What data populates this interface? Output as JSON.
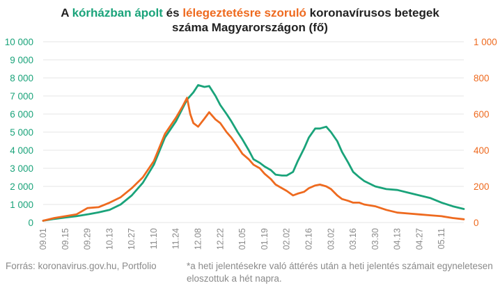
{
  "chart_data": {
    "type": "line",
    "title": {
      "part1": "A ",
      "hl1": "kórházban ápolt",
      "part2": " és ",
      "hl2": "lélegeztetésre szoruló",
      "part3": " koronavírusos betegek",
      "line2": "száma Magyarországon  (fő)"
    },
    "x_ticks": [
      "09.01",
      "09.15",
      "09.29",
      "10.13",
      "10.27",
      "11.10",
      "11.24",
      "12.08",
      "12.22",
      "01.05",
      "01.19",
      "02.02",
      "02.16",
      "03.02",
      "03.16",
      "03.30",
      "04.13",
      "04.27",
      "05.11"
    ],
    "y_left": {
      "ticks": [
        "0",
        "1 000",
        "2 000",
        "3 000",
        "4 000",
        "5 000",
        "6 000",
        "7 000",
        "8 000",
        "9 000",
        "10 000"
      ],
      "ylim": [
        0,
        10000
      ],
      "color": "#1aa37a"
    },
    "y_right": {
      "ticks": [
        "0",
        "200",
        "400",
        "600",
        "800",
        "1 000"
      ],
      "ylim": [
        0,
        1000
      ],
      "color": "#ee6a1f"
    },
    "grid": true,
    "series": [
      {
        "name": "kórházban ápolt",
        "axis": "left",
        "color": "#1aa37a",
        "points": [
          [
            0,
            100
          ],
          [
            7,
            200
          ],
          [
            14,
            280
          ],
          [
            21,
            350
          ],
          [
            28,
            450
          ],
          [
            35,
            560
          ],
          [
            42,
            700
          ],
          [
            49,
            1000
          ],
          [
            56,
            1500
          ],
          [
            63,
            2200
          ],
          [
            70,
            3200
          ],
          [
            77,
            4700
          ],
          [
            84,
            5600
          ],
          [
            91,
            6800
          ],
          [
            95,
            7200
          ],
          [
            98,
            7600
          ],
          [
            102,
            7500
          ],
          [
            105,
            7550
          ],
          [
            109,
            7000
          ],
          [
            112,
            6500
          ],
          [
            116,
            6000
          ],
          [
            119,
            5600
          ],
          [
            123,
            5000
          ],
          [
            126,
            4600
          ],
          [
            130,
            4000
          ],
          [
            133,
            3500
          ],
          [
            137,
            3300
          ],
          [
            140,
            3100
          ],
          [
            144,
            2900
          ],
          [
            147,
            2650
          ],
          [
            151,
            2600
          ],
          [
            154,
            2600
          ],
          [
            158,
            2800
          ],
          [
            161,
            3400
          ],
          [
            165,
            4100
          ],
          [
            168,
            4700
          ],
          [
            172,
            5200
          ],
          [
            175,
            5200
          ],
          [
            179,
            5300
          ],
          [
            182,
            5000
          ],
          [
            186,
            4500
          ],
          [
            189,
            3900
          ],
          [
            193,
            3300
          ],
          [
            196,
            2800
          ],
          [
            200,
            2500
          ],
          [
            203,
            2300
          ],
          [
            210,
            2000
          ],
          [
            217,
            1850
          ],
          [
            224,
            1800
          ],
          [
            231,
            1650
          ],
          [
            238,
            1500
          ],
          [
            245,
            1350
          ],
          [
            252,
            1100
          ],
          [
            259,
            900
          ],
          [
            266,
            750
          ]
        ]
      },
      {
        "name": "lélegeztetésre szoruló",
        "axis": "right",
        "color": "#ee6a1f",
        "points": [
          [
            0,
            10
          ],
          [
            7,
            25
          ],
          [
            14,
            35
          ],
          [
            21,
            45
          ],
          [
            28,
            80
          ],
          [
            35,
            85
          ],
          [
            42,
            110
          ],
          [
            49,
            140
          ],
          [
            56,
            190
          ],
          [
            63,
            250
          ],
          [
            70,
            340
          ],
          [
            77,
            490
          ],
          [
            84,
            580
          ],
          [
            88,
            640
          ],
          [
            91,
            690
          ],
          [
            93,
            600
          ],
          [
            95,
            550
          ],
          [
            98,
            530
          ],
          [
            102,
            575
          ],
          [
            105,
            610
          ],
          [
            109,
            570
          ],
          [
            112,
            550
          ],
          [
            116,
            500
          ],
          [
            119,
            470
          ],
          [
            123,
            420
          ],
          [
            126,
            380
          ],
          [
            130,
            350
          ],
          [
            133,
            320
          ],
          [
            137,
            300
          ],
          [
            140,
            270
          ],
          [
            144,
            240
          ],
          [
            147,
            210
          ],
          [
            151,
            190
          ],
          [
            154,
            175
          ],
          [
            158,
            150
          ],
          [
            161,
            160
          ],
          [
            165,
            170
          ],
          [
            168,
            190
          ],
          [
            172,
            205
          ],
          [
            175,
            210
          ],
          [
            179,
            200
          ],
          [
            182,
            185
          ],
          [
            186,
            150
          ],
          [
            189,
            130
          ],
          [
            193,
            120
          ],
          [
            196,
            110
          ],
          [
            200,
            110
          ],
          [
            203,
            100
          ],
          [
            210,
            90
          ],
          [
            217,
            70
          ],
          [
            224,
            55
          ],
          [
            231,
            50
          ],
          [
            238,
            45
          ],
          [
            245,
            40
          ],
          [
            252,
            35
          ],
          [
            259,
            25
          ],
          [
            266,
            18
          ]
        ]
      }
    ],
    "source": "Forrás: koronavirus.gov.hu, Portfolio",
    "note": "*a heti jelentésekre való áttérés után a heti jelentés számait egyneletesen eloszottuk a hét napra."
  }
}
